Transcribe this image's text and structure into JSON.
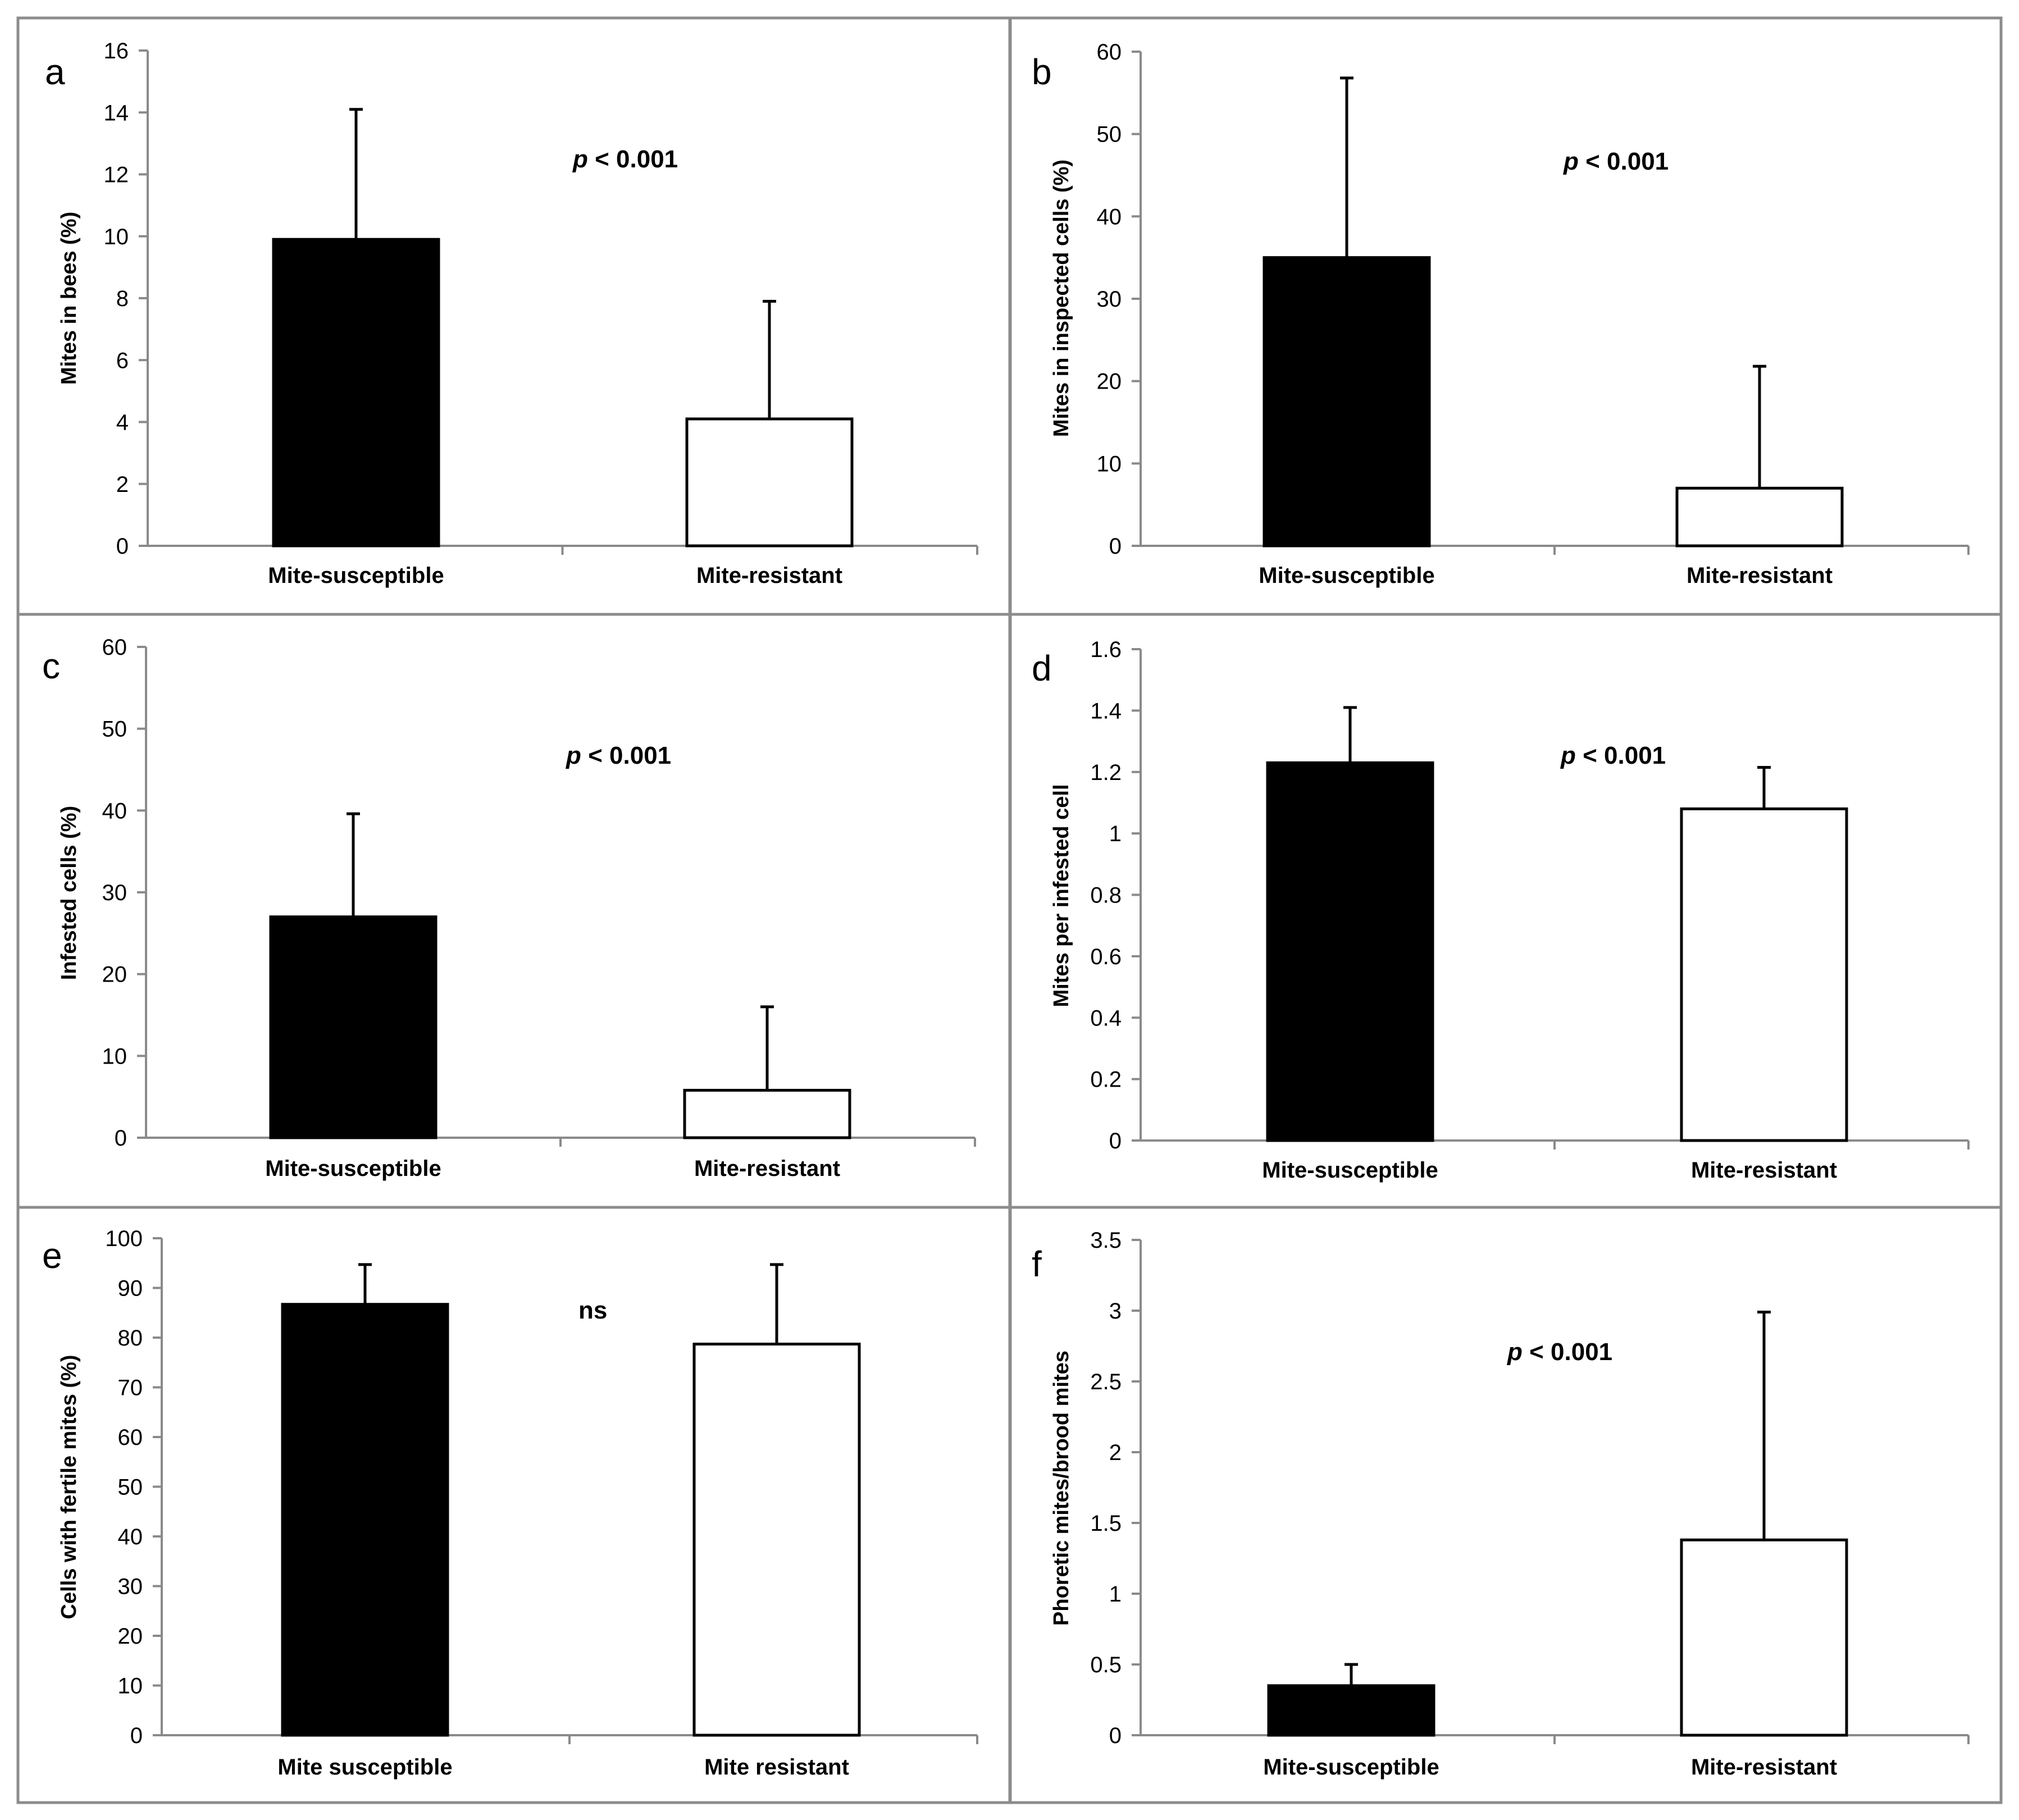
{
  "colors": {
    "susceptible": "#000000",
    "resistant": "#ffffff",
    "axis": "#8a8a8a",
    "frame": "#8c8c8c"
  },
  "chart_data": [
    {
      "panel": "a",
      "type": "bar",
      "categories": [
        "Mite-susceptible",
        "Mite-resistant"
      ],
      "values": [
        9.9,
        4.1
      ],
      "errors": [
        4.2,
        3.8
      ],
      "ylabel": "Mites in bees (%)",
      "ylim": [
        0,
        16
      ],
      "yticks": [
        0,
        2,
        4,
        6,
        8,
        10,
        12,
        14,
        16
      ],
      "significance": {
        "p": "p",
        "rest": " < 0.001"
      }
    },
    {
      "panel": "b",
      "type": "bar",
      "categories": [
        "Mite-susceptible",
        "Mite-resistant"
      ],
      "values": [
        35,
        7
      ],
      "errors": [
        21.8,
        14.8
      ],
      "ylabel": "Mites in inspected cells (%)",
      "ylim": [
        0,
        60
      ],
      "yticks": [
        0,
        10,
        20,
        30,
        40,
        50,
        60
      ],
      "significance": {
        "p": "p",
        "rest": " < 0.001"
      }
    },
    {
      "panel": "c",
      "type": "bar",
      "categories": [
        "Mite-susceptible",
        "Mite-resistant"
      ],
      "values": [
        27,
        5.8
      ],
      "errors": [
        12.6,
        10.2
      ],
      "ylabel": "Infested cells (%)",
      "ylim": [
        0,
        60
      ],
      "yticks": [
        0,
        10,
        20,
        30,
        40,
        50,
        60
      ],
      "significance": {
        "p": "p",
        "rest": " < 0.001"
      }
    },
    {
      "panel": "d",
      "type": "bar",
      "categories": [
        "Mite-susceptible",
        "Mite-resistant"
      ],
      "values": [
        1.23,
        1.08
      ],
      "errors": [
        0.18,
        0.135
      ],
      "ylabel": "Mites per infested cell",
      "ylim": [
        0,
        1.6
      ],
      "yticks": [
        0,
        0.2,
        0.4,
        0.6,
        0.8,
        1,
        1.2,
        1.4,
        1.6
      ],
      "significance": {
        "p": "p",
        "rest": " < 0.001"
      }
    },
    {
      "panel": "e",
      "type": "bar",
      "categories": [
        "Mite susceptible",
        "Mite resistant"
      ],
      "values": [
        86.7,
        78.7
      ],
      "errors": [
        8,
        16
      ],
      "ylabel": "Cells with fertile mites (%)",
      "ylim": [
        0,
        100
      ],
      "yticks": [
        0,
        10,
        20,
        30,
        40,
        50,
        60,
        70,
        80,
        90,
        100
      ],
      "significance": {
        "p": "",
        "rest": "ns"
      }
    },
    {
      "panel": "f",
      "type": "bar",
      "categories": [
        "Mite-susceptible",
        "Mite-resistant"
      ],
      "values": [
        0.35,
        1.38
      ],
      "errors": [
        0.15,
        1.61
      ],
      "ylabel": "Phoretic mites/brood mites",
      "ylim": [
        0,
        3.5
      ],
      "yticks": [
        0,
        0.5,
        1,
        1.5,
        2,
        2.5,
        3,
        3.5
      ],
      "significance": {
        "p": "p",
        "rest": " < 0.001"
      }
    }
  ]
}
